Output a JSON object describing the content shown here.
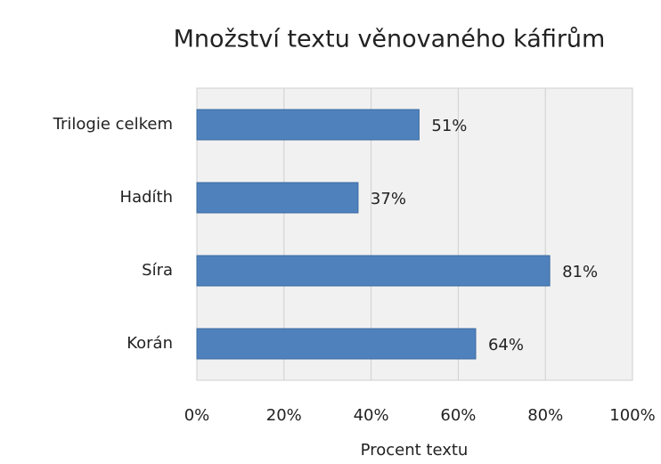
{
  "chart_data": {
    "type": "bar",
    "orientation": "horizontal",
    "title": "Množství textu věnovaného káfirům",
    "x_label": "Procent textu",
    "categories": [
      "Trilogie celkem",
      "Hadíth",
      "Síra",
      "Korán"
    ],
    "values": [
      51,
      37,
      81,
      64
    ],
    "value_labels": [
      "51%",
      "37%",
      "81%",
      "64%"
    ],
    "color": "#4f81bd",
    "xlim": [
      0,
      100
    ],
    "xticks": [
      {
        "value": 0,
        "label": "0%"
      },
      {
        "value": 20,
        "label": "20%"
      },
      {
        "value": 40,
        "label": "40%"
      },
      {
        "value": 60,
        "label": "60%"
      },
      {
        "value": 80,
        "label": "80%"
      },
      {
        "value": 100,
        "label": "100%"
      }
    ],
    "grid": true
  }
}
